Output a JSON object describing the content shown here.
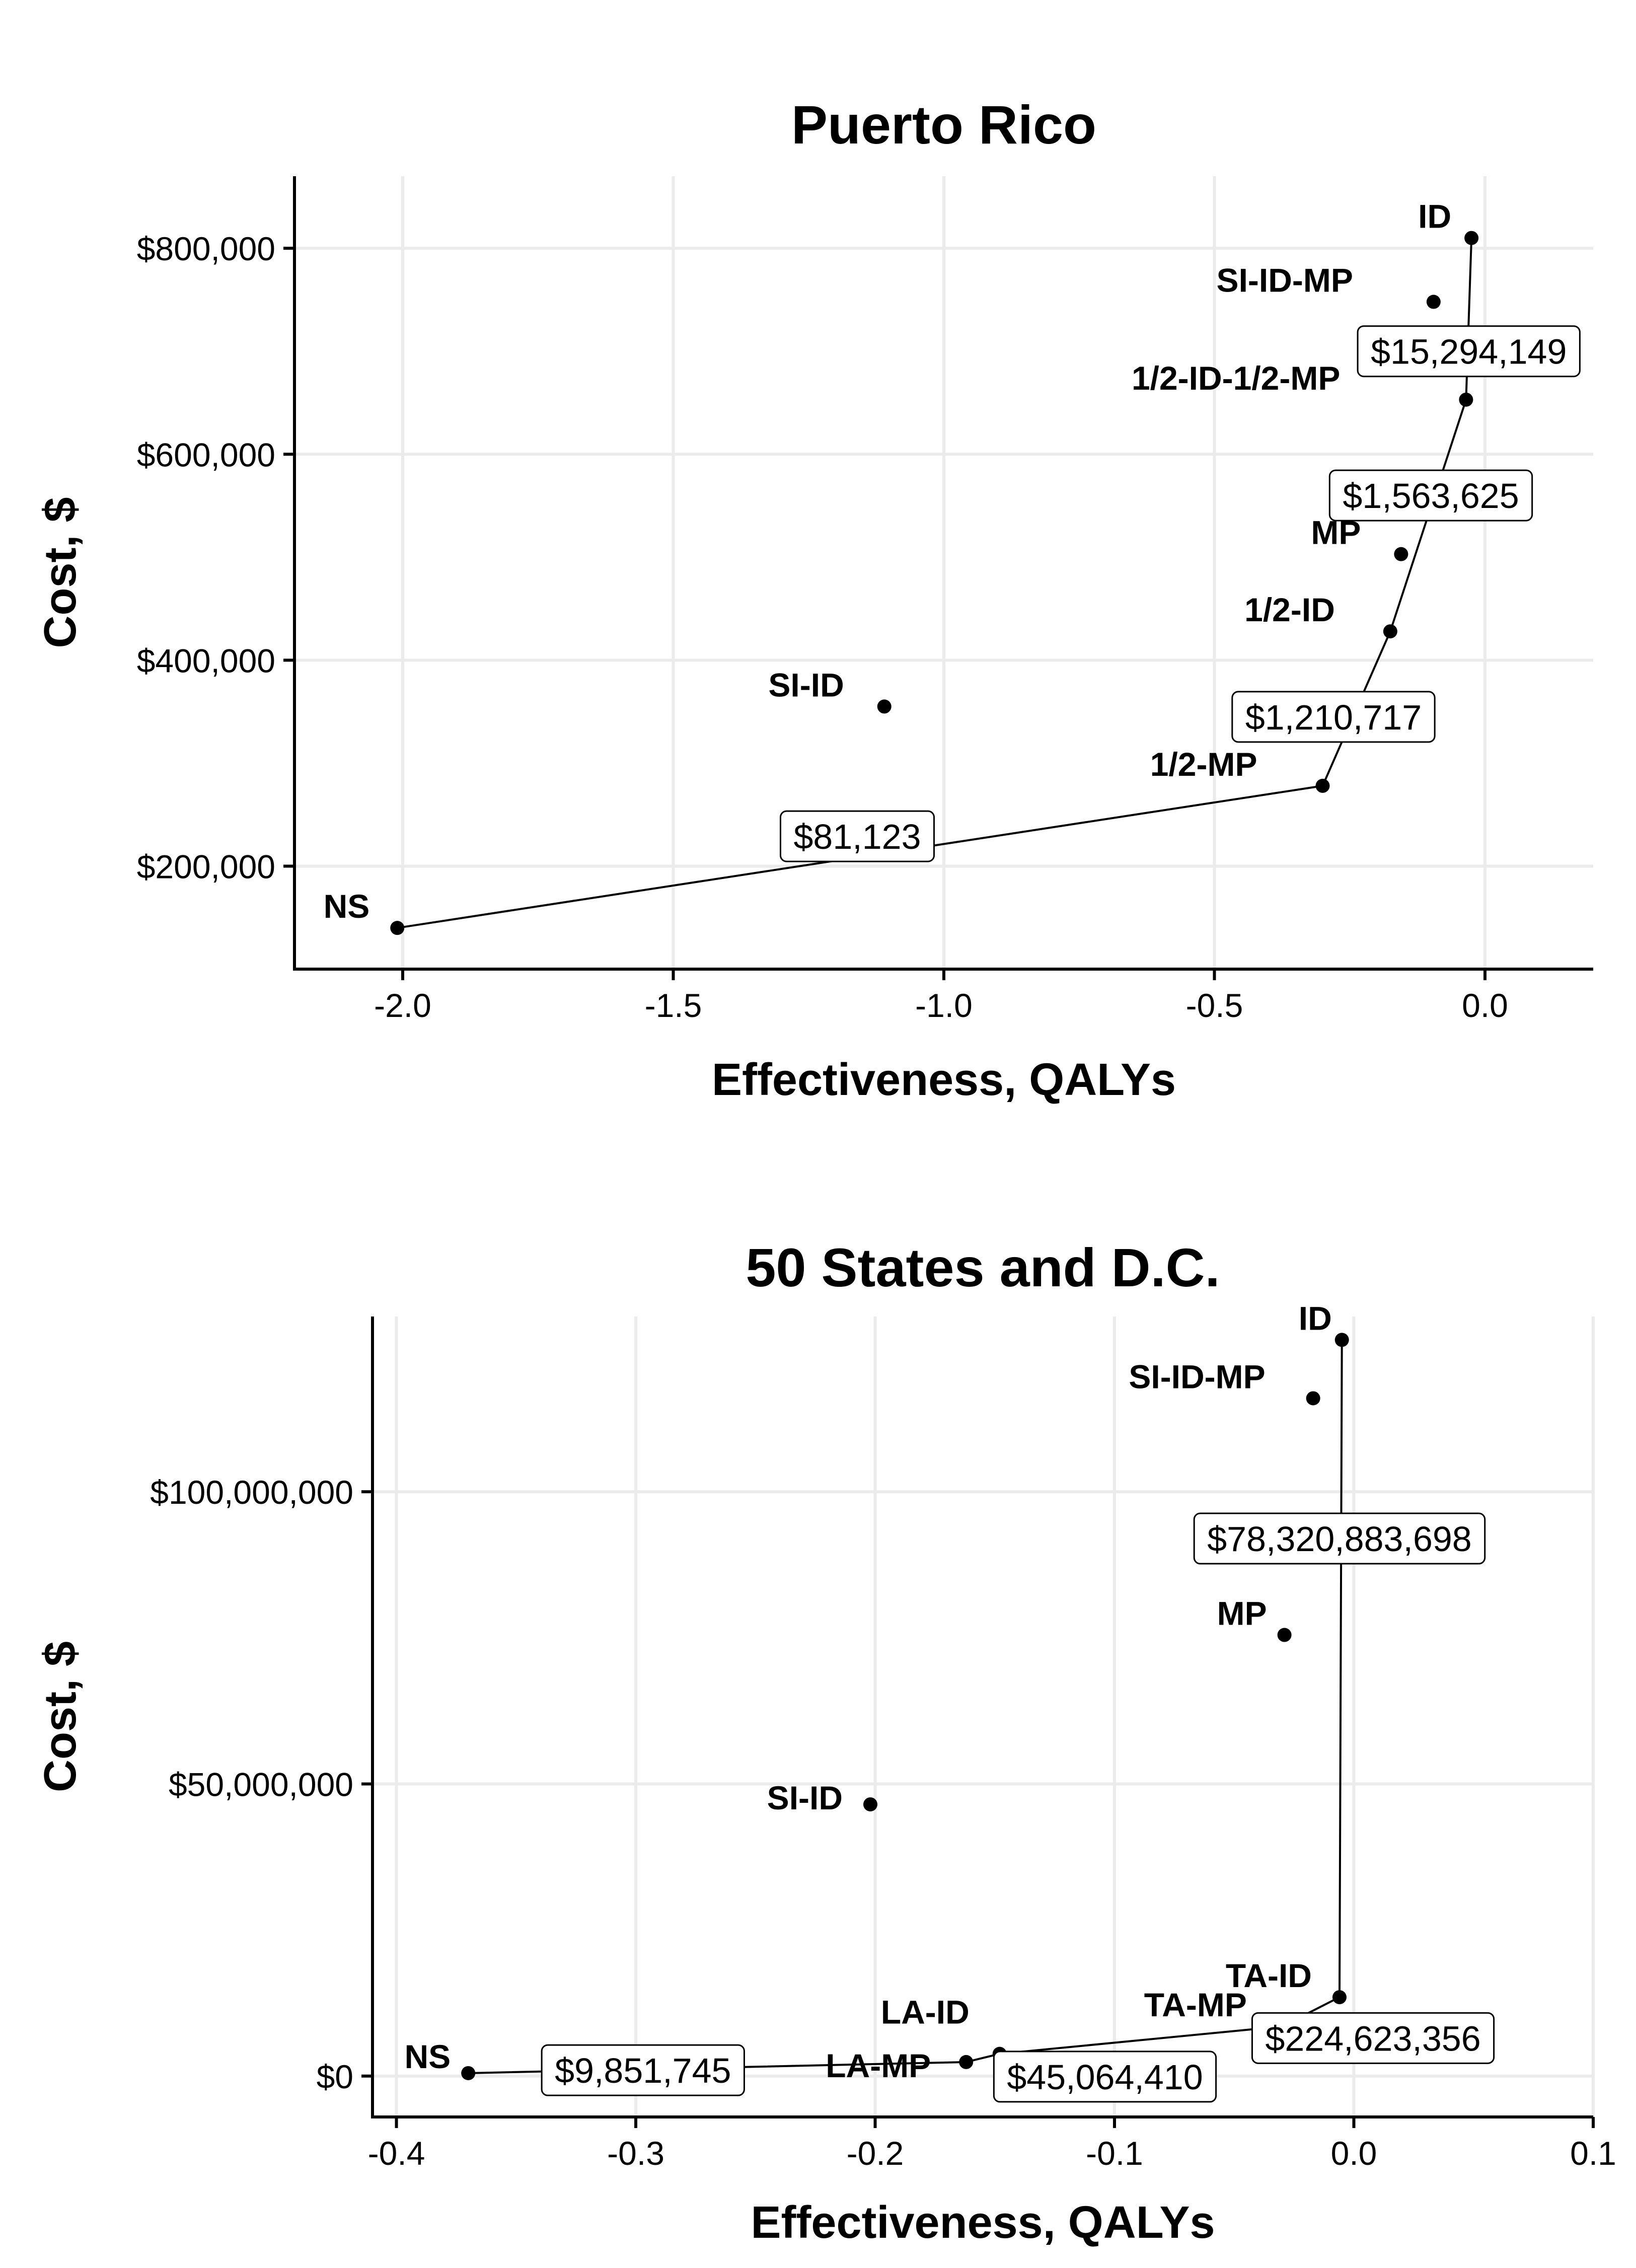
{
  "chart_data": [
    {
      "type": "scatter",
      "title": "Puerto Rico",
      "xlabel": "Effectiveness, QALYs",
      "ylabel": "Cost, $",
      "xlim": [
        -2.2,
        0.2
      ],
      "ylim": [
        100000,
        870000
      ],
      "x_ticks": [
        -2.0,
        -1.5,
        -1.0,
        -0.5,
        0.0
      ],
      "x_tick_labels": [
        "-2.0",
        "-1.5",
        "-1.0",
        "-0.5",
        "0.0"
      ],
      "y_ticks": [
        200000,
        400000,
        600000,
        800000
      ],
      "y_tick_labels": [
        "$200,000",
        "$400,000",
        "$600,000",
        "$800,000"
      ],
      "grid": true,
      "points": [
        {
          "label": "NS",
          "x": -2.01,
          "y": 140000
        },
        {
          "label": "1/2-MP",
          "x": -0.3,
          "y": 278000
        },
        {
          "label": "SI-ID",
          "x": -1.11,
          "y": 355000
        },
        {
          "label": "1/2-ID",
          "x": -0.175,
          "y": 428000
        },
        {
          "label": "MP",
          "x": -0.155,
          "y": 503000
        },
        {
          "label": "1/2-ID-1/2-MP",
          "x": -0.035,
          "y": 653000
        },
        {
          "label": "SI-ID-MP",
          "x": -0.095,
          "y": 748000
        },
        {
          "label": "ID",
          "x": -0.025,
          "y": 810000
        }
      ],
      "frontier": [
        "NS",
        "1/2-MP",
        "1/2-ID",
        "1/2-ID-1/2-MP",
        "ID"
      ],
      "icer_labels": [
        {
          "text": "$81,123",
          "x": -1.16,
          "y": 229000
        },
        {
          "text": "$1,210,717",
          "x": -0.28,
          "y": 345000
        },
        {
          "text": "$1,563,625",
          "x": -0.1,
          "y": 560000
        },
        {
          "text": "$15,294,149",
          "x": -0.03,
          "y": 700000
        }
      ]
    },
    {
      "type": "scatter",
      "title": "50 States and D.C.",
      "xlabel": "Effectiveness, QALYs",
      "ylabel": "Cost, $",
      "xlim": [
        -0.41,
        0.1
      ],
      "ylim": [
        -7000000,
        130000000
      ],
      "x_ticks": [
        -0.4,
        -0.3,
        -0.2,
        -0.1,
        0.0,
        0.1
      ],
      "x_tick_labels": [
        "-0.4",
        "-0.3",
        "-0.2",
        "-0.1",
        "0.0",
        "0.1"
      ],
      "y_ticks": [
        0,
        50000000,
        100000000
      ],
      "y_tick_labels": [
        "$0",
        "$50,000,000",
        "$100,000,000"
      ],
      "grid": true,
      "points": [
        {
          "label": "NS",
          "x": -0.37,
          "y": 500000
        },
        {
          "label": "LA-MP",
          "x": -0.162,
          "y": 2400000
        },
        {
          "label": "LA-ID",
          "x": -0.148,
          "y": 3800000
        },
        {
          "label": "TA-MP",
          "x": -0.03,
          "y": 8500000
        },
        {
          "label": "TA-ID",
          "x": -0.006,
          "y": 13500000
        },
        {
          "label": "SI-ID",
          "x": -0.202,
          "y": 46500000
        },
        {
          "label": "MP",
          "x": -0.029,
          "y": 75500000
        },
        {
          "label": "SI-ID-MP",
          "x": -0.017,
          "y": 116000000
        },
        {
          "label": "ID",
          "x": -0.005,
          "y": 126000000
        }
      ],
      "frontier": [
        "NS",
        "LA-MP",
        "LA-ID",
        "TA-MP",
        "TA-ID",
        "ID"
      ],
      "icer_labels": [
        {
          "text": "$9,851,745",
          "x": -0.297,
          "y": 1000000
        },
        {
          "text": "$45,064,410",
          "x": -0.104,
          "y": -100000
        },
        {
          "text": "$224,623,356",
          "x": 0.008,
          "y": 6500000
        },
        {
          "text": "$78,320,883,698",
          "x": -0.006,
          "y": 92000000
        }
      ]
    }
  ]
}
